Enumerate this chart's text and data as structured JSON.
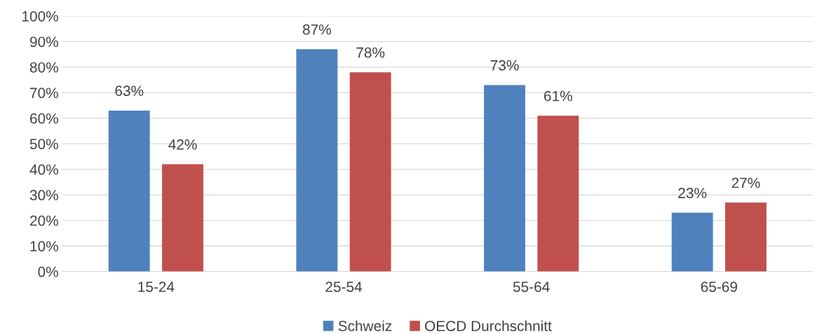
{
  "chart_data": {
    "type": "bar",
    "categories": [
      "15-24",
      "25-54",
      "55-64",
      "65-69"
    ],
    "series": [
      {
        "name": "Schweiz",
        "color": "#4f81bd",
        "values": [
          63,
          87,
          73,
          23
        ],
        "value_labels": [
          "63%",
          "87%",
          "73%",
          "23%"
        ]
      },
      {
        "name": "OECD Durchschnitt",
        "color": "#c0504d",
        "values": [
          42,
          78,
          61,
          27
        ],
        "value_labels": [
          "42%",
          "78%",
          "61%",
          "27%"
        ]
      }
    ],
    "ylim": [
      0,
      100
    ],
    "yticks": [
      {
        "value": 0,
        "label": "0%"
      },
      {
        "value": 10,
        "label": "10%"
      },
      {
        "value": 20,
        "label": "20%"
      },
      {
        "value": 30,
        "label": "30%"
      },
      {
        "value": 40,
        "label": "40%"
      },
      {
        "value": 50,
        "label": "50%"
      },
      {
        "value": 60,
        "label": "60%"
      },
      {
        "value": 70,
        "label": "70%"
      },
      {
        "value": 80,
        "label": "80%"
      },
      {
        "value": 90,
        "label": "90%"
      },
      {
        "value": 100,
        "label": "100%"
      }
    ],
    "grid": "y",
    "legend": "bottom"
  }
}
